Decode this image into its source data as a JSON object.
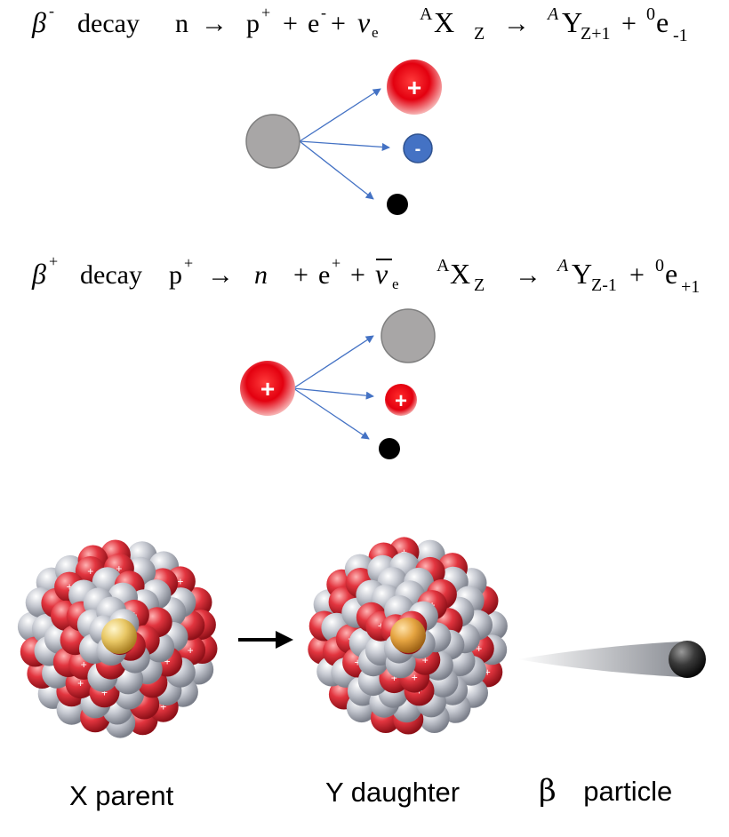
{
  "beta_minus": {
    "symbol": "β",
    "sign": "-",
    "word": "decay",
    "n": "n",
    "arrow": "→",
    "p": "p",
    "p_charge": "+",
    "plus": "+",
    "e": "e",
    "e_charge": "-",
    "nu": "ν",
    "nu_sub": "e",
    "A": "A",
    "X": "X",
    "Z": "Z",
    "A_it": "A",
    "Y": "Y",
    "Y_sub": "Z+1",
    "zero": "0",
    "e2": "e",
    "e2_sub": "-1",
    "proton_label": "+",
    "electron_label": "-"
  },
  "beta_plus": {
    "symbol": "β",
    "sign": "+",
    "word": "decay",
    "p": "p",
    "p_charge": "+",
    "arrow": "→",
    "n": "n",
    "plus": "+",
    "e": "e",
    "e_charge": "+",
    "nu": "ν",
    "nu_sub": "e",
    "A": "A",
    "X": "X",
    "Z": "Z",
    "A_it": "A",
    "Y": "Y",
    "Y_sub": "Z-1",
    "zero": "0",
    "e2": "e",
    "e2_sub": "+1",
    "parent_label": "+",
    "positron_label": "+"
  },
  "captions": {
    "parent": "X parent",
    "daughter": "Y daughter",
    "beta": "β",
    "particle": "particle"
  },
  "colors": {
    "neutron": "#a8a6a6",
    "proton": "#e3000f",
    "electron": "#4472c4",
    "neutrino": "#000000",
    "arrow": "#4472c4",
    "nucleus_gray": "#b9bcc4",
    "nucleus_red": "#d8323c",
    "nucleus_core": "#e6c46a"
  }
}
